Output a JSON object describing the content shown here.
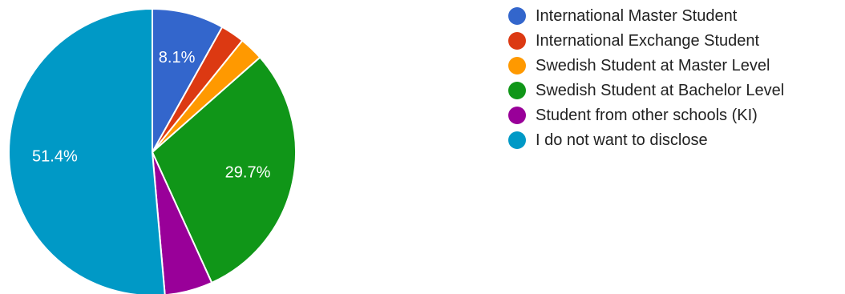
{
  "chart_data": {
    "type": "pie",
    "title": "",
    "slices": [
      {
        "label": "International Master Student",
        "value": 8.1,
        "color": "#3366cc",
        "data_label": "8.1%"
      },
      {
        "label": "International Exchange Student",
        "value": 2.7,
        "color": "#dc3912",
        "data_label": ""
      },
      {
        "label": "Swedish Student at Master Level",
        "value": 2.7,
        "color": "#ff9900",
        "data_label": ""
      },
      {
        "label": "Swedish Student at Bachelor Level",
        "value": 29.7,
        "color": "#109618",
        "data_label": "29.7%"
      },
      {
        "label": "Student from other schools (KI)",
        "value": 5.4,
        "color": "#990099",
        "data_label": ""
      },
      {
        "label": "I do not want to disclose",
        "value": 51.4,
        "color": "#0099c6",
        "data_label": "51.4%"
      }
    ],
    "start_angle_deg": 90,
    "direction": "clockwise",
    "legend_position": "right"
  }
}
